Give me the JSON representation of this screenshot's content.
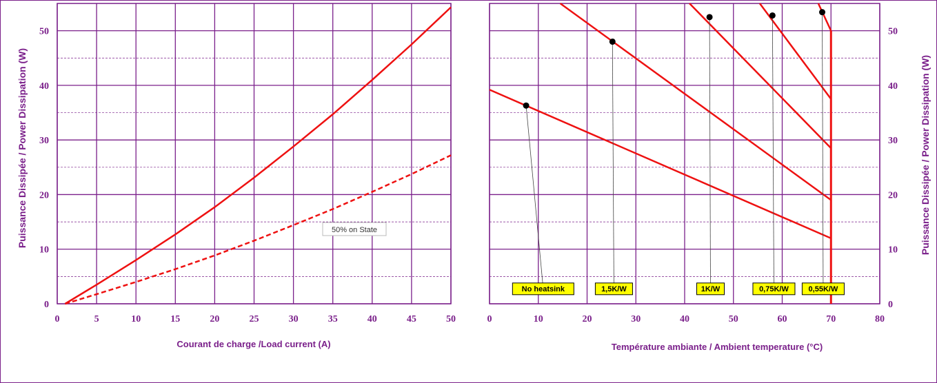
{
  "colors": {
    "axis": "#7a1f8a",
    "grid_minor": "#7a1f8a",
    "curve": "#ee1111",
    "tag_fill": "#ffff00",
    "dot": "#000000"
  },
  "chart_data": [
    {
      "type": "line",
      "xlabel": "Courant de charge /Load current (A)",
      "ylabel": "Puissance Dissipée / Power Dissipation (W)",
      "xlim": [
        0,
        50
      ],
      "ylim": [
        0,
        55
      ],
      "xticks": [
        0,
        5,
        10,
        15,
        20,
        25,
        30,
        35,
        40,
        45,
        50
      ],
      "yticks": [
        0,
        10,
        20,
        30,
        40,
        50
      ],
      "grid": true,
      "annotation": "50% on State",
      "series": [
        {
          "style": "solid",
          "x": [
            1,
            5,
            10,
            15,
            20,
            25,
            30,
            35,
            40,
            45,
            50
          ],
          "y": [
            0,
            3.5,
            8,
            12.7,
            17.7,
            23.1,
            28.8,
            34.7,
            41.0,
            47.5,
            54.3
          ]
        },
        {
          "style": "dashed",
          "x": [
            1,
            5,
            10,
            15,
            20,
            25,
            30,
            35,
            40,
            45,
            50
          ],
          "y": [
            0,
            1.75,
            4.0,
            6.35,
            8.85,
            11.55,
            14.4,
            17.35,
            20.5,
            23.75,
            27.2
          ]
        }
      ]
    },
    {
      "type": "line",
      "xlabel": "Température ambiante / Ambient temperature (°C)",
      "ylabel": "Puissance Dissipée / Power Dissipation (W)",
      "xlim": [
        0,
        80
      ],
      "ylim": [
        0,
        55
      ],
      "xticks": [
        0,
        10,
        20,
        30,
        40,
        50,
        60,
        70,
        80
      ],
      "yticks": [
        0,
        10,
        20,
        30,
        40,
        50
      ],
      "grid": true,
      "vertical_limit": {
        "x": 70,
        "y_range": [
          0,
          50
        ]
      },
      "series": [
        {
          "label": "No heatsink",
          "x": [
            0,
            70
          ],
          "y": [
            39.2,
            12.0
          ],
          "dot": [
            7.5,
            36.3
          ],
          "label_x": 11
        },
        {
          "label": "1,5K/W",
          "x": [
            14.5,
            70
          ],
          "y": [
            55,
            19.0
          ],
          "dot": [
            25.2,
            48.0
          ],
          "label_x": 25.5
        },
        {
          "label": "1K/W",
          "x": [
            41,
            70
          ],
          "y": [
            55,
            28.5
          ],
          "dot": [
            45.1,
            52.5
          ],
          "label_x": 45.3
        },
        {
          "label": "0,75K/W",
          "x": [
            55.4,
            70
          ],
          "y": [
            55,
            37.5
          ],
          "dot": [
            58.0,
            52.8
          ],
          "label_x": 58.3
        },
        {
          "label": "0,55K/W",
          "x": [
            67.4,
            70
          ],
          "y": [
            55,
            50.0
          ],
          "dot": [
            68.2,
            53.4
          ],
          "label_x": 68.4
        }
      ]
    }
  ]
}
